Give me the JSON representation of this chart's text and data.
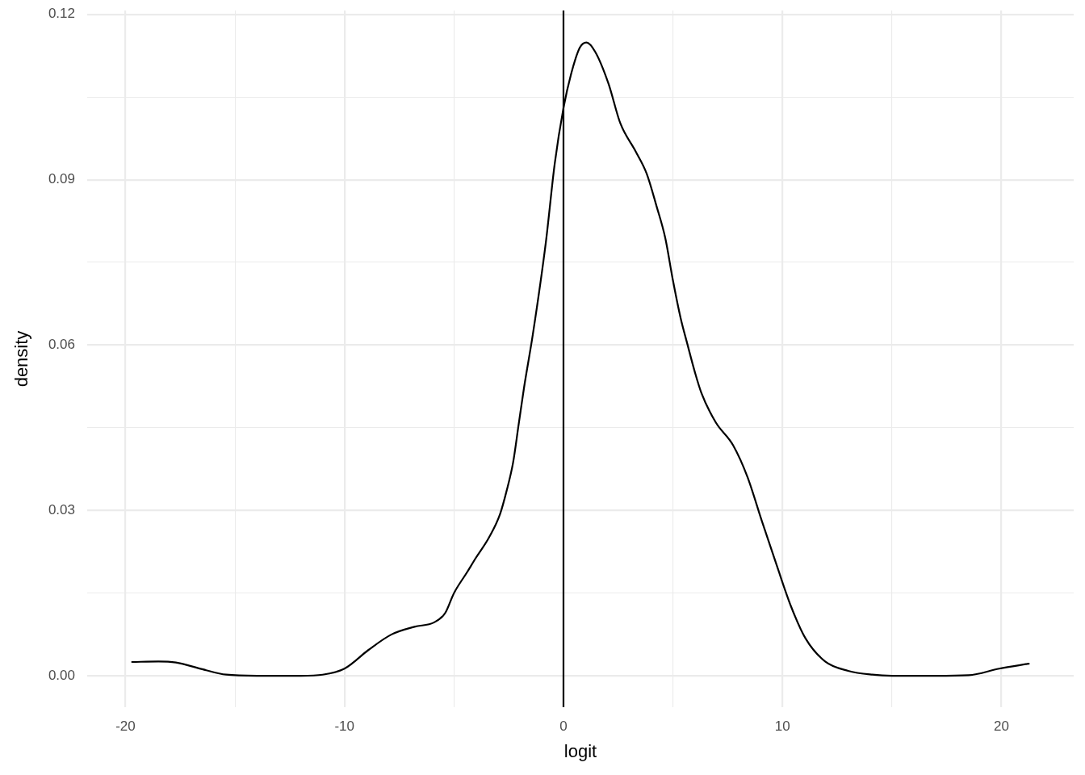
{
  "chart_data": {
    "type": "line",
    "xlabel": "logit",
    "ylabel": "density",
    "color": "#000000",
    "x": [
      -19.7,
      -18.5,
      -17.7,
      -16.5,
      -15.4,
      -14,
      -12,
      -11,
      -10,
      -8.9,
      -7.85,
      -6.8,
      -5.9,
      -5.4,
      -5,
      -4.4,
      -4,
      -3.4,
      -2.9,
      -2.6,
      -2.3,
      -2.05,
      -1.8,
      -1.4,
      -0.8,
      -0.4,
      0,
      0.35,
      0.75,
      1.05,
      1.45,
      2.05,
      2.6,
      3.3,
      3.8,
      4.25,
      4.65,
      5,
      5.35,
      5.65,
      6,
      6.3,
      6.95,
      7.75,
      8.4,
      9.05,
      9.75,
      10.4,
      11.05,
      11.95,
      13,
      14.1,
      15,
      17,
      18.5,
      19.9,
      21.25
    ],
    "values": [
      0.0025,
      0.0026,
      0.0024,
      0.0012,
      0.0002,
      0,
      0,
      0.0002,
      0.0013,
      0.0047,
      0.0075,
      0.0089,
      0.0097,
      0.0114,
      0.015,
      0.0188,
      0.0214,
      0.0251,
      0.0293,
      0.0335,
      0.0387,
      0.0455,
      0.0523,
      0.0619,
      0.0788,
      0.0929,
      0.103,
      0.1092,
      0.114,
      0.1149,
      0.1132,
      0.1075,
      0.1002,
      0.0951,
      0.0911,
      0.0852,
      0.0794,
      0.0717,
      0.0649,
      0.0603,
      0.0551,
      0.0513,
      0.046,
      0.0418,
      0.0361,
      0.0282,
      0.0199,
      0.0125,
      0.0068,
      0.0026,
      0.0009,
      0.0002,
      0,
      0,
      0.0001,
      0.0013,
      0.0022
    ],
    "xlim": [
      -21.75,
      23.3
    ],
    "ylim": [
      -0.0057,
      0.1207
    ],
    "xticks": [
      -20,
      {
        "value": -15,
        "label": null
      },
      -10,
      {
        "value": -5,
        "label": null
      },
      0,
      {
        "value": 5,
        "label": null
      },
      10,
      {
        "value": 15,
        "label": null
      },
      20
    ],
    "yticks": [
      {
        "value": 0,
        "label": "0.00"
      },
      {
        "value": 0.015,
        "label": null
      },
      0.03,
      {
        "value": 0.045,
        "label": null
      },
      0.06,
      {
        "value": 0.075,
        "label": null
      },
      0.09,
      {
        "value": 0.105,
        "label": null
      },
      0.12
    ],
    "grid": true,
    "ref_lines": [
      {
        "axis": "x",
        "value": 0,
        "color": "#000000"
      }
    ]
  }
}
